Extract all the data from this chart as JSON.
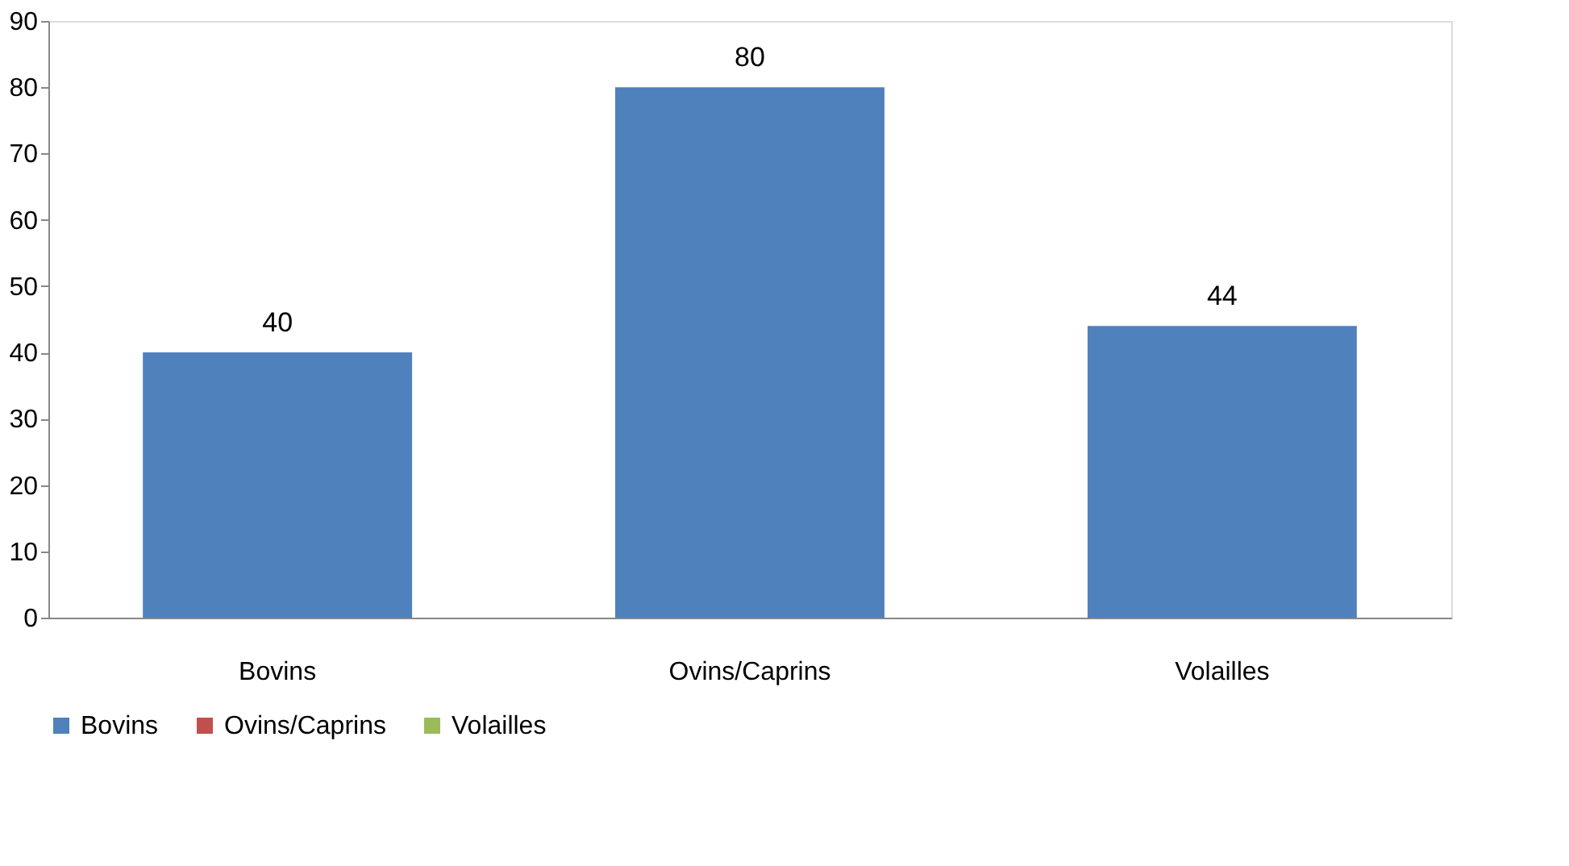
{
  "chart_data": {
    "type": "bar",
    "categories": [
      "Bovins",
      "Ovins/Caprins",
      "Volailles"
    ],
    "series": [
      {
        "name": "Bovins",
        "color": "#4f81bd",
        "values": [
          40,
          80,
          44
        ]
      },
      {
        "name": "Ovins/Caprins",
        "color": "#c0504d",
        "values": [
          null,
          null,
          null
        ]
      },
      {
        "name": "Volailles",
        "color": "#9bbb59",
        "values": [
          null,
          null,
          null
        ]
      }
    ],
    "ylim": [
      0,
      90
    ],
    "yticks": [
      0,
      10,
      20,
      30,
      40,
      50,
      60,
      70,
      80,
      90
    ],
    "grid": false,
    "legend": "bottom",
    "data_labels": true
  }
}
